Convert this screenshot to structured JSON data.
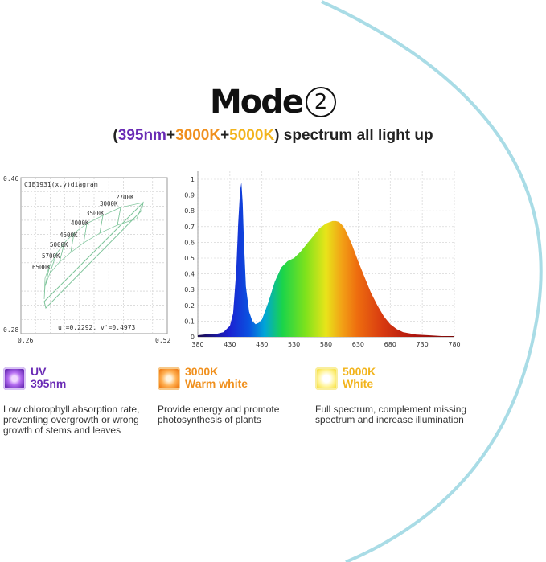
{
  "header": {
    "mode_label": "Mode",
    "mode_number": "2",
    "subtitle": {
      "open": "(",
      "uv": "395nm",
      "plus1": "+",
      "warm": "3000K",
      "plus2": "+",
      "white": "5000K",
      "close": ")",
      "rest": " spectrum all light up"
    }
  },
  "chart_data": [
    {
      "type": "scatter",
      "title": "CIE1931(x,y)diagram",
      "xlim": [
        0.26,
        0.52
      ],
      "ylim": [
        0.28,
        0.46
      ],
      "x_ticks": [
        "0.26",
        "0.52"
      ],
      "y_ticks": [
        "0.28",
        "0.46"
      ],
      "grid": true,
      "cct_labels": [
        "2700K",
        "3000K",
        "3500K",
        "4000K",
        "4500K",
        "5000K",
        "5700K",
        "6500K"
      ],
      "annotation": "u'=0.2292, v'=0.4973"
    },
    {
      "type": "area",
      "xlim": [
        380,
        780
      ],
      "ylim": [
        0,
        1
      ],
      "x_ticks": [
        380,
        430,
        480,
        530,
        580,
        630,
        680,
        730,
        780
      ],
      "y_ticks": [
        0,
        0.1,
        0.2,
        0.3,
        0.4,
        0.5,
        0.6,
        0.7,
        0.8,
        0.9,
        1
      ],
      "grid": true,
      "series": [
        {
          "x": [
            380,
            390,
            400,
            410,
            420,
            430,
            435,
            440,
            443,
            446,
            448,
            450,
            452,
            455,
            460,
            465,
            470,
            475,
            480,
            490,
            500,
            510,
            520,
            530,
            540,
            550,
            560,
            570,
            580,
            590,
            595,
            600,
            605,
            610,
            620,
            630,
            640,
            650,
            660,
            670,
            680,
            690,
            700,
            720,
            740,
            760,
            780
          ],
          "y": [
            0.01,
            0.015,
            0.02,
            0.02,
            0.03,
            0.07,
            0.15,
            0.42,
            0.72,
            0.93,
            0.98,
            0.85,
            0.6,
            0.32,
            0.16,
            0.1,
            0.08,
            0.09,
            0.11,
            0.22,
            0.35,
            0.44,
            0.48,
            0.5,
            0.54,
            0.59,
            0.64,
            0.69,
            0.72,
            0.735,
            0.735,
            0.73,
            0.71,
            0.68,
            0.59,
            0.48,
            0.38,
            0.28,
            0.2,
            0.13,
            0.08,
            0.05,
            0.03,
            0.015,
            0.01,
            0.005,
            0.005
          ]
        }
      ]
    }
  ],
  "features": [
    {
      "icon": "uv-led-chip-icon",
      "line1": "UV",
      "line2": "395nm",
      "color": "#6a2bb5",
      "desc": "Low chlorophyll absorption rate, preventing overgrowth or wrong growth of stems and leaves"
    },
    {
      "icon": "warm-led-chip-icon",
      "line1": "3000K",
      "line2": "Warm white",
      "color": "#f0901e",
      "desc": "Provide energy and promote photosynthesis of plants"
    },
    {
      "icon": "white-led-chip-icon",
      "line1": "5000K",
      "line2": "White",
      "color": "#f2b41c",
      "desc": "Full spectrum, complement missing spectrum and increase illumination"
    }
  ],
  "colors": {
    "arc": "#a9dce6",
    "uv": "#6a2bb5",
    "warm": "#f0901e",
    "white": "#f2b41c"
  }
}
